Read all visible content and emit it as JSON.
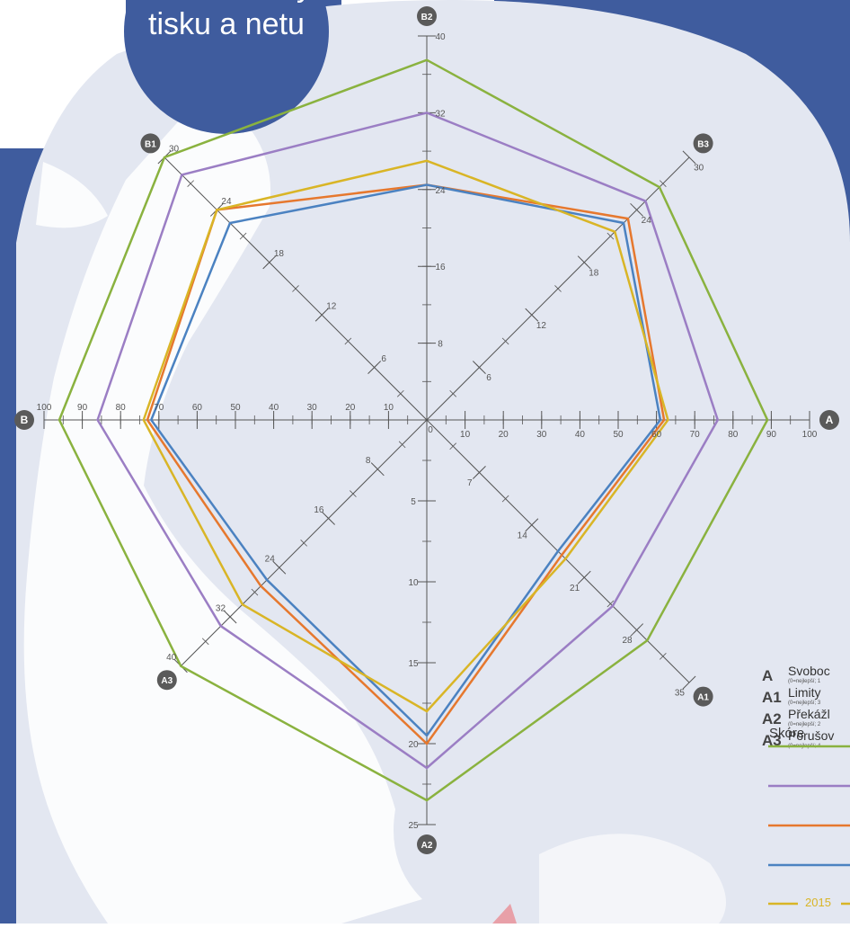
{
  "header": {
    "title_line2": "tisku a netu",
    "title_line1_partial": "y"
  },
  "colors": {
    "frame": "#3f5c9e",
    "panel": "#e3e7f1",
    "map": "#ffffff",
    "axis": "#555555",
    "badge": "#5a5a5a",
    "accent_red": "#e8a0a8"
  },
  "legend": {
    "items": [
      {
        "code": "A",
        "label": "Svoboc",
        "note": "(0=nejlepší; 1"
      },
      {
        "code": "A1",
        "label": "Limity",
        "note": "(0=nejlepší; 3"
      },
      {
        "code": "A2",
        "label": "Překážl",
        "note": "(0=nejlepší; 2"
      },
      {
        "code": "A3",
        "label": "Porušov",
        "note": "(0=nejlepší; 4"
      }
    ],
    "score_label": "Skóre",
    "year_label": "2015"
  },
  "chart_data": {
    "type": "radar",
    "axes": [
      {
        "id": "A",
        "code": "A",
        "max": 100,
        "ticks": [
          "10",
          "20",
          "30",
          "40",
          "50",
          "60",
          "70",
          "80",
          "90",
          "100"
        ],
        "tick_values": [
          10,
          20,
          30,
          40,
          50,
          60,
          70,
          80,
          90,
          100
        ],
        "minor_step": 5,
        "zero_label": "0"
      },
      {
        "id": "A1",
        "code": "A1",
        "max": 35,
        "ticks": [
          "7",
          "14",
          "21",
          "28",
          "35"
        ],
        "tick_values": [
          7,
          14,
          21,
          28,
          35
        ],
        "minor_step": 3.5,
        "zero_label": ""
      },
      {
        "id": "A2",
        "code": "A2",
        "max": 25,
        "ticks": [
          "5",
          "10",
          "15",
          "20",
          "25"
        ],
        "tick_values": [
          5,
          10,
          15,
          20,
          25
        ],
        "minor_step": 2.5,
        "zero_label": ""
      },
      {
        "id": "A3",
        "code": "A3",
        "max": 40,
        "ticks": [
          "8",
          "16",
          "24",
          "32",
          "40"
        ],
        "tick_values": [
          8,
          16,
          24,
          32,
          40
        ],
        "minor_step": 4,
        "zero_label": ""
      },
      {
        "id": "B",
        "code": "B",
        "max": 100,
        "ticks": [
          "10",
          "20",
          "30",
          "40",
          "50",
          "60",
          "70",
          "80",
          "90",
          "100"
        ],
        "tick_values": [
          10,
          20,
          30,
          40,
          50,
          60,
          70,
          80,
          90,
          100
        ],
        "minor_step": 5,
        "zero_label": ""
      },
      {
        "id": "B1",
        "code": "B1",
        "max": 30,
        "ticks": [
          "6",
          "12",
          "18",
          "24",
          "30"
        ],
        "tick_values": [
          6,
          12,
          18,
          24,
          30
        ],
        "minor_step": 3,
        "zero_label": ""
      },
      {
        "id": "B2",
        "code": "B2",
        "max": 40,
        "ticks": [
          "8",
          "16",
          "24",
          "32",
          "40"
        ],
        "tick_values": [
          8,
          16,
          24,
          32,
          40
        ],
        "minor_step": 4,
        "zero_label": ""
      },
      {
        "id": "B3",
        "code": "B3",
        "max": 30,
        "ticks": [
          "6",
          "12",
          "18",
          "24",
          "30"
        ],
        "tick_values": [
          6,
          12,
          18,
          24,
          30
        ],
        "minor_step": 3,
        "zero_label": ""
      }
    ],
    "series": [
      {
        "color": "#8ab23f",
        "values": [
          89,
          29.4,
          23.5,
          40,
          96,
          30,
          37.5,
          26.6
        ]
      },
      {
        "color": "#9b7ec4",
        "values": [
          76,
          24.8,
          21.5,
          33.5,
          86,
          28,
          32,
          25
        ]
      },
      {
        "color": "#e6782e",
        "values": [
          62,
          18,
          20,
          27,
          73,
          24,
          24.5,
          23
        ]
      },
      {
        "color": "#4b82c1",
        "values": [
          61,
          17.5,
          19.5,
          26,
          72,
          22.5,
          24.5,
          22.5
        ]
      },
      {
        "name": "2015",
        "color": "#d9b526",
        "values": [
          63,
          18.5,
          18,
          30,
          74,
          24,
          27,
          21.5
        ]
      }
    ]
  }
}
